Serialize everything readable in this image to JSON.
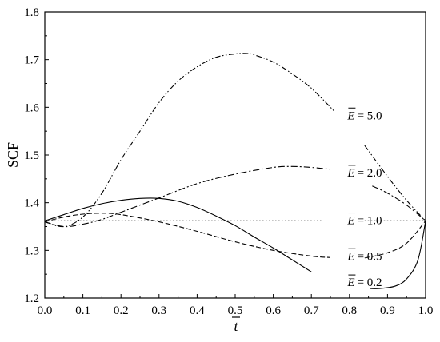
{
  "chart_data": {
    "type": "line",
    "title": "",
    "xlabel": "t",
    "xlabel_overbar": true,
    "ylabel": "SCF",
    "xlim": [
      0.0,
      1.0
    ],
    "ylim": [
      1.2,
      1.8
    ],
    "x_ticks": [
      "0.0",
      "0.1",
      "0.2",
      "0.3",
      "0.4",
      "0.5",
      "0.6",
      "0.7",
      "0.8",
      "0.9",
      "1.0"
    ],
    "y_ticks": [
      "1.2",
      "1.3",
      "1.4",
      "1.5",
      "1.6",
      "1.7",
      "1.8"
    ],
    "grid": false,
    "legend": "inline-labels",
    "series": [
      {
        "name": "E = 5.0",
        "label_symbol": "E",
        "label_value": "= 5.0",
        "dash": "dash-dot-dot",
        "segments": [
          [
            [
              0.0,
              1.36
            ],
            [
              0.05,
              1.35
            ],
            [
              0.1,
              1.37
            ],
            [
              0.15,
              1.42
            ],
            [
              0.2,
              1.49
            ],
            [
              0.25,
              1.55
            ],
            [
              0.3,
              1.61
            ],
            [
              0.35,
              1.655
            ],
            [
              0.4,
              1.685
            ],
            [
              0.45,
              1.705
            ],
            [
              0.5,
              1.712
            ],
            [
              0.53,
              1.713
            ],
            [
              0.55,
              1.71
            ],
            [
              0.6,
              1.695
            ],
            [
              0.65,
              1.67
            ],
            [
              0.7,
              1.64
            ],
            [
              0.76,
              1.592
            ]
          ],
          [
            [
              0.84,
              1.52
            ],
            [
              0.9,
              1.455
            ],
            [
              0.95,
              1.405
            ],
            [
              1.0,
              1.362
            ]
          ]
        ]
      },
      {
        "name": "E = 2.0",
        "label_symbol": "E",
        "label_value": "= 2.0",
        "dash": "dash-dot",
        "segments": [
          [
            [
              0.0,
              1.36
            ],
            [
              0.05,
              1.35
            ],
            [
              0.1,
              1.355
            ],
            [
              0.15,
              1.365
            ],
            [
              0.2,
              1.38
            ],
            [
              0.3,
              1.41
            ],
            [
              0.4,
              1.44
            ],
            [
              0.5,
              1.46
            ],
            [
              0.6,
              1.474
            ],
            [
              0.65,
              1.476
            ],
            [
              0.7,
              1.474
            ],
            [
              0.75,
              1.47
            ]
          ],
          [
            [
              0.86,
              1.435
            ],
            [
              0.9,
              1.42
            ],
            [
              0.95,
              1.395
            ],
            [
              1.0,
              1.362
            ]
          ]
        ]
      },
      {
        "name": "E = 1.0",
        "label_symbol": "E",
        "label_value": "= 1.0",
        "dash": "dot",
        "segments": [
          [
            [
              0.0,
              1.362
            ],
            [
              0.55,
              1.362
            ],
            [
              0.73,
              1.362
            ]
          ],
          [
            [
              0.84,
              1.362
            ],
            [
              1.0,
              1.362
            ]
          ]
        ]
      },
      {
        "name": "E = 0.5",
        "label_symbol": "E",
        "label_value": "= 0.5",
        "dash": "dash",
        "segments": [
          [
            [
              0.0,
              1.36
            ],
            [
              0.05,
              1.37
            ],
            [
              0.1,
              1.376
            ],
            [
              0.15,
              1.378
            ],
            [
              0.2,
              1.375
            ],
            [
              0.3,
              1.36
            ],
            [
              0.4,
              1.34
            ],
            [
              0.5,
              1.318
            ],
            [
              0.6,
              1.3
            ],
            [
              0.7,
              1.288
            ],
            [
              0.75,
              1.285
            ]
          ],
          [
            [
              0.84,
              1.284
            ],
            [
              0.9,
              1.295
            ],
            [
              0.95,
              1.315
            ],
            [
              1.0,
              1.362
            ]
          ]
        ]
      },
      {
        "name": "E = 0.2",
        "label_symbol": "E",
        "label_value": "= 0.2",
        "dash": "solid",
        "segments": [
          [
            [
              0.0,
              1.362
            ],
            [
              0.05,
              1.375
            ],
            [
              0.1,
              1.388
            ],
            [
              0.15,
              1.398
            ],
            [
              0.2,
              1.405
            ],
            [
              0.25,
              1.409
            ],
            [
              0.3,
              1.409
            ],
            [
              0.35,
              1.403
            ],
            [
              0.4,
              1.39
            ],
            [
              0.45,
              1.372
            ],
            [
              0.5,
              1.352
            ],
            [
              0.55,
              1.328
            ],
            [
              0.6,
              1.305
            ],
            [
              0.65,
              1.28
            ],
            [
              0.7,
              1.255
            ]
          ],
          [
            [
              0.855,
              1.22
            ],
            [
              0.88,
              1.22
            ],
            [
              0.92,
              1.225
            ],
            [
              0.95,
              1.24
            ],
            [
              0.98,
              1.28
            ],
            [
              1.0,
              1.362
            ]
          ]
        ]
      }
    ],
    "label_positions": [
      {
        "series": "E = 5.0",
        "x": 0.795,
        "y": 1.575
      },
      {
        "series": "E = 2.0",
        "x": 0.795,
        "y": 1.455
      },
      {
        "series": "E = 1.0",
        "x": 0.795,
        "y": 1.355
      },
      {
        "series": "E = 0.5",
        "x": 0.795,
        "y": 1.28
      },
      {
        "series": "E = 0.2",
        "x": 0.795,
        "y": 1.225
      }
    ]
  }
}
